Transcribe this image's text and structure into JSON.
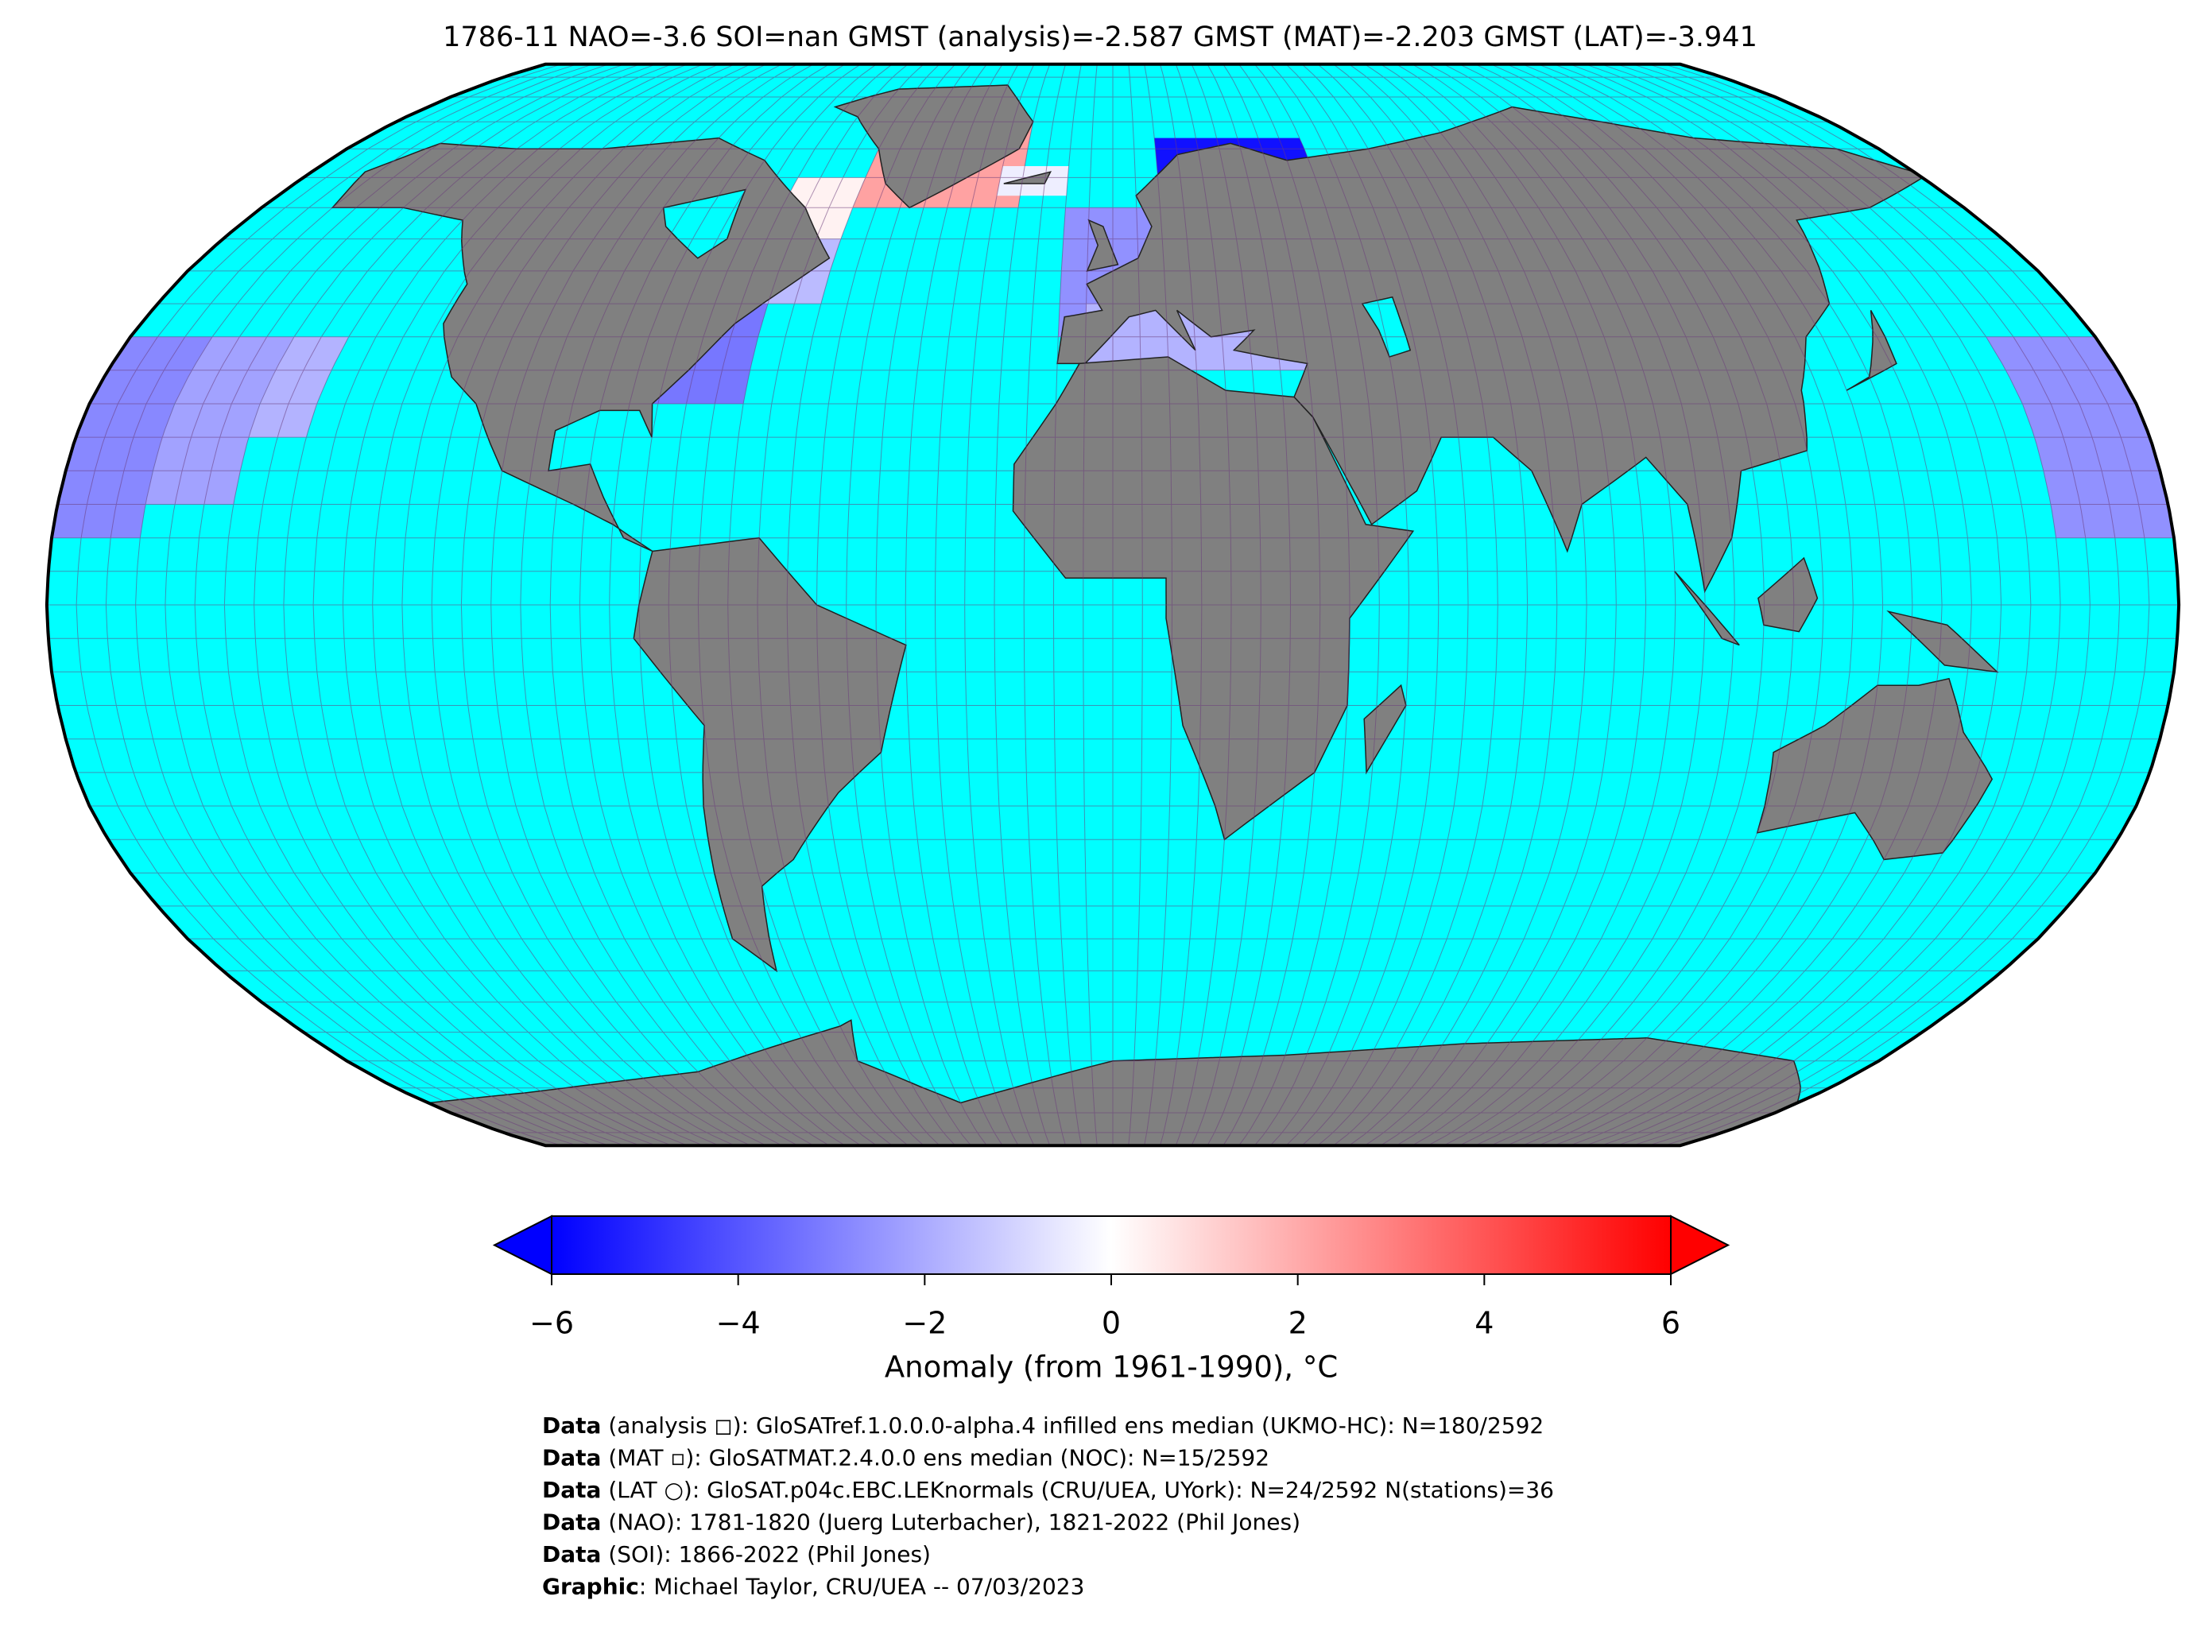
{
  "chart_data": {
    "type": "map",
    "title": "1786-11 NAO=-3.6 SOI=nan GMST (analysis)=-2.587 GMST (MAT)=-2.203 GMST (LAT)=-3.941",
    "ocean_color": "#00ffff",
    "land_color": "#808080",
    "clim": [
      -6,
      6
    ],
    "cticks": [
      {
        "value": -6,
        "label": "−6"
      },
      {
        "value": -4,
        "label": "−4"
      },
      {
        "value": -2,
        "label": "−2"
      },
      0,
      2,
      4,
      6
    ],
    "colorbar_label": "Anomaly (from 1961-1990), °C",
    "cells": [
      {
        "lon": [
          -180,
          -165
        ],
        "lat": [
          10,
          40
        ],
        "value": -2.8
      },
      {
        "lon": [
          -165,
          -150
        ],
        "lat": [
          15,
          40
        ],
        "value": -2.2
      },
      {
        "lon": [
          -150,
          -140
        ],
        "lat": [
          25,
          40
        ],
        "value": -1.8
      },
      {
        "lon": [
          160,
          180
        ],
        "lat": [
          10,
          40
        ],
        "value": -2.6
      },
      {
        "lon": [
          -85,
          -65
        ],
        "lat": [
          30,
          45
        ],
        "value": -3.2
      },
      {
        "lon": [
          -75,
          -55
        ],
        "lat": [
          45,
          55
        ],
        "value": -1.6
      },
      {
        "lon": [
          -70,
          -55
        ],
        "lat": [
          55,
          65
        ],
        "value": 0.3
      },
      {
        "lon": [
          -55,
          -20
        ],
        "lat": [
          60,
          75
        ],
        "value": 2.2
      },
      {
        "lon": [
          -25,
          -10
        ],
        "lat": [
          62,
          67
        ],
        "value": -0.4
      },
      {
        "lon": [
          -10,
          10
        ],
        "lat": [
          40,
          60
        ],
        "value": -2.6
      },
      {
        "lon": [
          10,
          45
        ],
        "lat": [
          45,
          72
        ],
        "value": -5.6
      },
      {
        "lon": [
          -5,
          35
        ],
        "lat": [
          35,
          45
        ],
        "value": -1.8
      },
      {
        "lon": [
          0,
          5
        ],
        "lat": [
          30,
          35
        ],
        "value": -1.8
      }
    ],
    "footer": [
      {
        "bold": "Data",
        "text": " (analysis ◻): GloSATref.1.0.0.0-alpha.4 infilled ens median (UKMO-HC): N=180/2592"
      },
      {
        "bold": "Data",
        "text": " (MAT ▫): GloSATMAT.2.4.0.0 ens median (NOC): N=15/2592"
      },
      {
        "bold": "Data",
        "text": " (LAT ○): GloSAT.p04c.EBC.LEKnormals (CRU/UEA, UYork): N=24/2592 N(stations)=36"
      },
      {
        "bold": "Data",
        "text": " (NAO): 1781-1820 (Juerg Luterbacher), 1821-2022 (Phil Jones)"
      },
      {
        "bold": "Data",
        "text": " (SOI): 1866-2022 (Phil Jones)"
      },
      {
        "bold": "Graphic",
        "text": ": Michael Taylor, CRU/UEA -- 07/03/2023"
      }
    ]
  }
}
